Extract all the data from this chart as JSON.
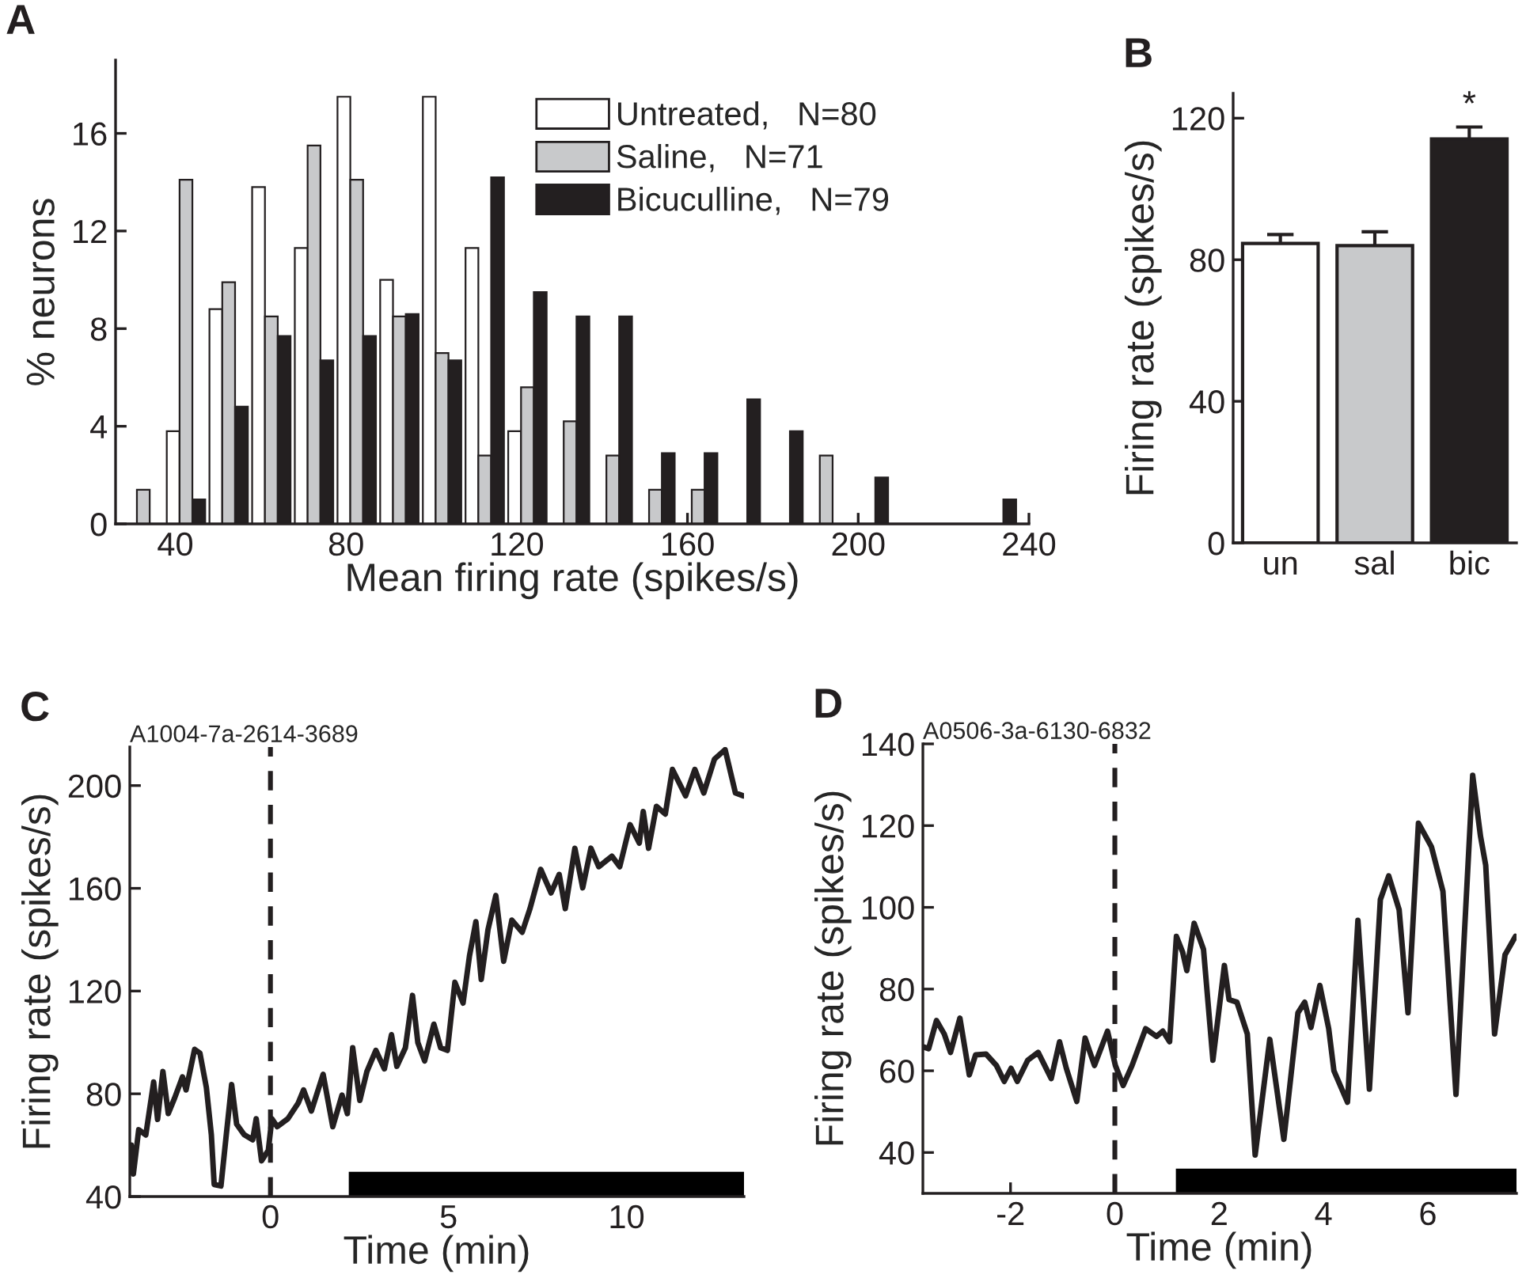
{
  "chart_data": [
    {
      "type": "bar",
      "xlabel": "Mean firing rate (spikes/s)",
      "ylabel": "% neurons",
      "annotations": [
        "A"
      ],
      "x": [
        32.5,
        42.5,
        52.5,
        62.5,
        72.5,
        82.5,
        92.5,
        102.5,
        112.5,
        122.5,
        132.5,
        142.5,
        152.5,
        162.5,
        172.5,
        182.5,
        192.5,
        202.5,
        212.5,
        222.5,
        232.5
      ],
      "series": [
        {
          "name": "Untreated,   N=80",
          "color": "#ffffff",
          "values": [
            null,
            3.8,
            8.8,
            13.8,
            11.3,
            17.5,
            10,
            17.5,
            11.3,
            3.8,
            null,
            null,
            null,
            null,
            null,
            null,
            null,
            null,
            null,
            null,
            null
          ]
        },
        {
          "name": "Saline,   N=71",
          "color": "#c8c9cb",
          "values": [
            1.4,
            14.1,
            9.9,
            8.5,
            15.5,
            14.1,
            8.5,
            7,
            2.8,
            5.6,
            4.2,
            2.8,
            1.4,
            1.4,
            null,
            null,
            2.8,
            null,
            null,
            null,
            null
          ]
        },
        {
          "name": "Bicuculline,   N=79",
          "color": "#231f20",
          "values": [
            null,
            1,
            4.8,
            7.7,
            6.7,
            7.7,
            8.6,
            6.7,
            14.2,
            9.5,
            8.5,
            8.5,
            2.9,
            2.9,
            5.1,
            3.8,
            null,
            1.9,
            null,
            null,
            1
          ]
        }
      ],
      "xlim": [
        26,
        240
      ],
      "xticks": [
        40,
        80,
        120,
        160,
        200,
        240
      ],
      "ylim": [
        0,
        19
      ],
      "yticks": [
        0,
        4,
        8,
        12,
        16
      ],
      "legend": "top right"
    },
    {
      "type": "bar",
      "ylabel": "Firing rate (spikes/s)",
      "annotations": [
        "B",
        "*"
      ],
      "categories": [
        "un",
        "sal",
        "bic"
      ],
      "values": [
        84.6,
        84,
        114.1
      ],
      "colors": [
        "#ffffff",
        "#c8c9cb",
        "#231f20"
      ],
      "errors": [
        2.5,
        3.9,
        3.4
      ],
      "ylim": [
        0,
        127
      ],
      "yticks": [
        0,
        40,
        80,
        120
      ]
    },
    {
      "type": "line",
      "title": "A1004-7a-2614-3689",
      "xlabel": "Time (min)",
      "ylabel": "Firing rate (spikes/s)",
      "annotations": [
        "C"
      ],
      "x": [
        -3.91,
        -3.85,
        -3.7,
        -3.5,
        -3.28,
        -3.17,
        -3.02,
        -2.87,
        -2.69,
        -2.47,
        -2.37,
        -2.13,
        -1.98,
        -1.8,
        -1.66,
        -1.58,
        -1.39,
        -1.24,
        -1.09,
        -0.95,
        -0.74,
        -0.5,
        -0.4,
        -0.25,
        -0.06,
        0.04,
        0.19,
        0.49,
        0.78,
        0.93,
        1.15,
        1.48,
        1.75,
        2.01,
        2.16,
        2.31,
        2.51,
        2.71,
        2.96,
        3.2,
        3.4,
        3.55,
        3.79,
        3.99,
        4.14,
        4.33,
        4.59,
        4.78,
        4.97,
        5.18,
        5.41,
        5.59,
        5.77,
        5.92,
        6.11,
        6.33,
        6.55,
        6.78,
        7.07,
        7.29,
        7.59,
        7.88,
        8.11,
        8.28,
        8.55,
        8.77,
        9.0,
        9.22,
        9.59,
        9.81,
        10.1,
        10.36,
        10.47,
        10.62,
        10.84,
        11.09,
        11.29,
        11.66,
        11.92,
        12.17,
        12.47,
        12.77,
        13.06,
        13.28
      ],
      "series": [
        {
          "color": "#231f20",
          "values": [
            60,
            48.8,
            66,
            64,
            84.6,
            70,
            88.7,
            72.3,
            78.4,
            86.6,
            81.5,
            97.3,
            95.8,
            82.5,
            64.1,
            44.7,
            44.1,
            64.1,
            83.6,
            68.2,
            64.1,
            62.1,
            70.3,
            53.9,
            58,
            70.3,
            67.2,
            70.3,
            76.4,
            81.5,
            73.3,
            87.6,
            67.2,
            79.5,
            72.3,
            97.9,
            77.4,
            88.7,
            96.9,
            89.7,
            103,
            90.7,
            97.9,
            118.3,
            99.9,
            92.8,
            107.1,
            97.9,
            96.9,
            123.4,
            115.3,
            133.7,
            147,
            124.5,
            143.9,
            157.2,
            131.6,
            147.6,
            142.9,
            152.1,
            167.4,
            158.2,
            165.4,
            152.1,
            175.6,
            160.2,
            175.6,
            168.4,
            172.5,
            168.4,
            184.8,
            177.6,
            189.9,
            175.6,
            191.9,
            188.9,
            206.3,
            196,
            206.3,
            197.1,
            210.3,
            214,
            197.1,
            196
          ]
        }
      ],
      "xlim": [
        -3.95,
        13.3
      ],
      "xticks": [
        0,
        5,
        10
      ],
      "ylim": [
        40,
        215
      ],
      "yticks": [
        40,
        80,
        120,
        160,
        200
      ],
      "ref_lines": [
        {
          "axis": "x",
          "value": 0,
          "color": "#231f20",
          "line_style": "dashed"
        }
      ],
      "bands": [
        {
          "axis": "x",
          "from": 2.2,
          "to": 13.3,
          "color": "#000000"
        }
      ]
    },
    {
      "type": "line",
      "title": "A0506-3a-6130-6832",
      "xlabel": "Time (min)",
      "ylabel": "Firing rate (spikes/s)",
      "annotations": [
        "D"
      ],
      "x": [
        -3.66,
        -3.57,
        -3.42,
        -3.27,
        -3.15,
        -2.97,
        -2.79,
        -2.67,
        -2.47,
        -2.27,
        -2.12,
        -1.99,
        -1.87,
        -1.67,
        -1.47,
        -1.22,
        -1.06,
        -0.93,
        -0.73,
        -0.57,
        -0.39,
        -0.14,
        0.01,
        0.16,
        0.33,
        0.59,
        0.8,
        0.92,
        1.05,
        1.18,
        1.3,
        1.38,
        1.52,
        1.7,
        1.88,
        2.1,
        2.19,
        2.34,
        2.54,
        2.69,
        2.97,
        3.24,
        3.51,
        3.64,
        3.76,
        3.93,
        4.1,
        4.2,
        4.46,
        4.66,
        4.88,
        5.09,
        5.25,
        5.45,
        5.62,
        5.82,
        6.07,
        6.29,
        6.54,
        6.86,
        7.01,
        7.11,
        7.28,
        7.48,
        7.68
      ],
      "series": [
        {
          "color": "#231f20",
          "values": [
            65.8,
            65.4,
            72.3,
            69,
            64.5,
            72.9,
            59,
            63.9,
            64.1,
            61.3,
            57.4,
            60.6,
            57.4,
            62.6,
            64.5,
            58.1,
            67.1,
            60.6,
            52.5,
            68,
            61.3,
            69.7,
            61.3,
            56.4,
            61.3,
            70.3,
            68.4,
            69.7,
            67.1,
            92.9,
            89,
            84.5,
            96.1,
            89.7,
            62.6,
            85.8,
            77.4,
            76.8,
            69,
            39.4,
            67.7,
            43.2,
            74.2,
            76.8,
            70.6,
            80.9,
            70.3,
            60,
            52.3,
            96.8,
            55.5,
            101.9,
            107.7,
            99.4,
            74.2,
            120.6,
            114.8,
            103.9,
            54.2,
            132.3,
            117.4,
            110.3,
            69,
            88.4,
            92.9
          ]
        }
      ],
      "xlim": [
        -3.68,
        7.7
      ],
      "xticks": [
        -2,
        0,
        2,
        4,
        6
      ],
      "ylim": [
        30,
        140
      ],
      "yticks": [
        40,
        60,
        80,
        100,
        120,
        140
      ],
      "ref_lines": [
        {
          "axis": "x",
          "value": 0,
          "color": "#231f20",
          "line_style": "dashed"
        }
      ],
      "bands": [
        {
          "axis": "x",
          "from": 1.17,
          "to": 7.7,
          "color": "#000000"
        }
      ]
    }
  ]
}
